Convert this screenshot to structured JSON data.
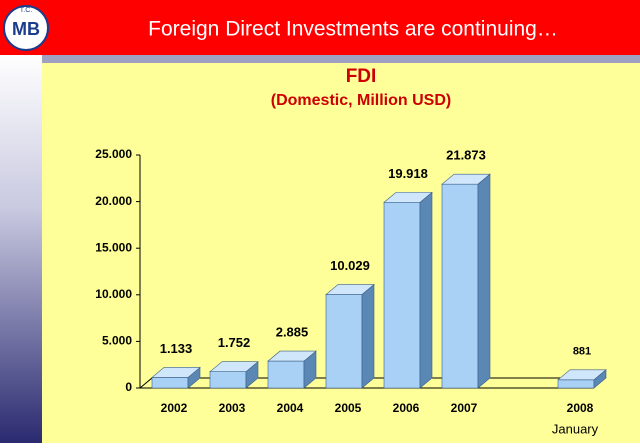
{
  "header": {
    "title": "Foreign Direct Investments are continuing…"
  },
  "logo": {
    "top": "T.C.",
    "mark": "MB"
  },
  "chart_data": {
    "type": "bar3d",
    "title": "FDI",
    "subtitle": "(Domestic, Million USD)",
    "categories": [
      "2002",
      "2003",
      "2004",
      "2005",
      "2006",
      "2007",
      "2008"
    ],
    "values": [
      1133,
      1752,
      2885,
      10029,
      19918,
      21873,
      881
    ],
    "value_labels": [
      "1.133",
      "1.752",
      "2.885",
      "10.029",
      "19.918",
      "21.873",
      "881"
    ],
    "annotation": "January",
    "color": "#a9d0f5",
    "ylim": [
      0,
      25000
    ],
    "yticks": [
      0,
      {
        "value": 5000,
        "label": "5.000"
      },
      {
        "value": 10000,
        "label": "10.000"
      },
      {
        "value": 15000,
        "label": "15.000"
      },
      {
        "value": 20000,
        "label": "20.000"
      },
      {
        "value": 25000,
        "label": "25.000"
      }
    ]
  }
}
